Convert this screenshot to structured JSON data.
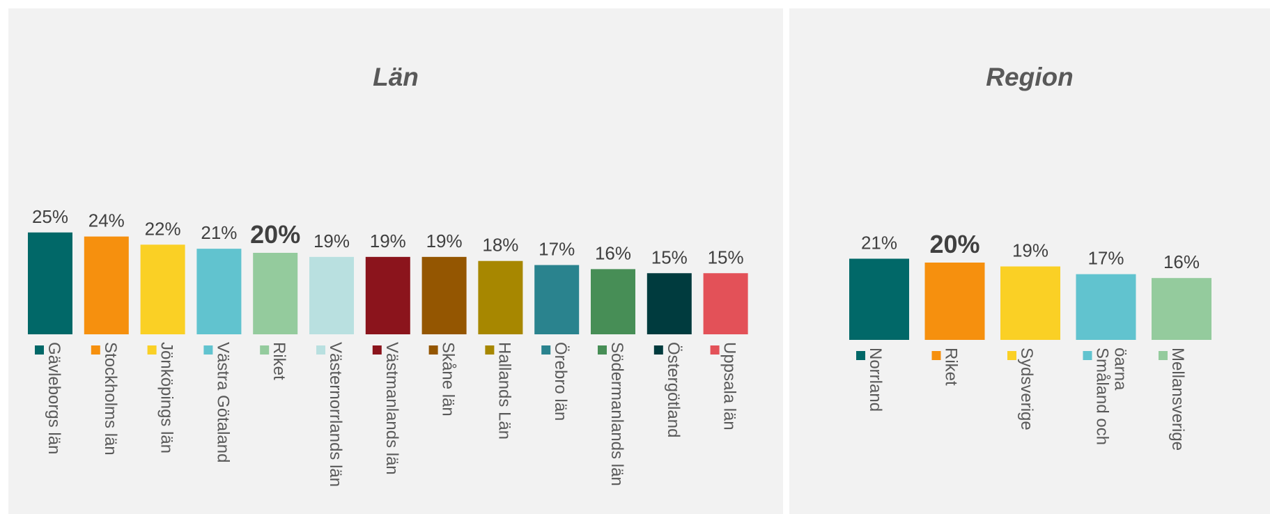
{
  "chart_data": [
    {
      "type": "bar",
      "title": "Län",
      "categories": [
        "Gävleborgs län",
        "Stockholms län",
        "Jönköpings län",
        "Västra Götaland",
        "Riket",
        "Västernorrlands län",
        "Västmanlands län",
        "Skåne län",
        "Hallands Län",
        "Örebro län",
        "Södermanlands län",
        "Östergötland",
        "Uppsala län"
      ],
      "values": [
        25,
        24,
        22,
        21,
        20,
        19,
        19,
        19,
        18,
        17,
        16,
        15,
        15
      ],
      "value_labels": [
        "25%",
        "24%",
        "22%",
        "21%",
        "20%",
        "19%",
        "19%",
        "19%",
        "18%",
        "17%",
        "16%",
        "15%",
        "15%"
      ],
      "highlight": "Riket",
      "colors": [
        "#016868",
        "#f6900e",
        "#fad025",
        "#61c3cf",
        "#94cb9d",
        "#b9e0e0",
        "#8b141c",
        "#945601",
        "#a78700",
        "#2a838e",
        "#478e56",
        "#003b3e",
        "#e35158"
      ],
      "legend": "below each bar, rotated",
      "grid": false,
      "ylim": [
        0,
        25
      ]
    },
    {
      "type": "bar",
      "title": "Region",
      "categories": [
        "Norrland",
        "Riket",
        "Sydsverige",
        "Småland och öarna",
        "Mellansverige"
      ],
      "category_lines": [
        [
          "Norrland"
        ],
        [
          "Riket"
        ],
        [
          "Sydsverige"
        ],
        [
          "Småland och",
          "öarna"
        ],
        [
          "Mellansverige"
        ]
      ],
      "values": [
        21,
        20,
        19,
        17,
        16
      ],
      "value_labels": [
        "21%",
        "20%",
        "19%",
        "17%",
        "16%"
      ],
      "highlight": "Riket",
      "colors": [
        "#016868",
        "#f6900e",
        "#fad025",
        "#61c3cf",
        "#94cb9d"
      ],
      "legend": "below each bar, rotated",
      "grid": false,
      "ylim": [
        0,
        21
      ]
    }
  ]
}
